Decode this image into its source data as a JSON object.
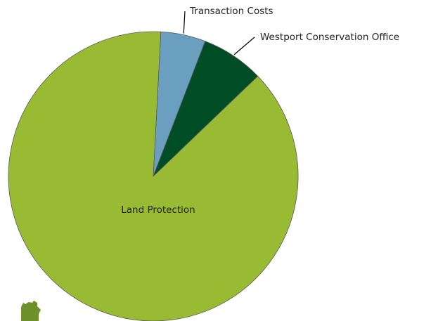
{
  "chart_data": {
    "type": "pie",
    "title": "",
    "slices": [
      {
        "label": "Transaction Costs",
        "value": 5,
        "color": "#6a9fbf"
      },
      {
        "label": "Westport Conservation Office",
        "value": 7,
        "color": "#004d26"
      },
      {
        "label": "Land Protection",
        "value": 88,
        "color": "#99bb33"
      }
    ],
    "start_angle_deg": 87,
    "direction": "clockwise",
    "legend": "none",
    "label_style": "callouts"
  },
  "logo": {
    "name": "organization-logo-icon",
    "color": "#6f8f2a"
  }
}
